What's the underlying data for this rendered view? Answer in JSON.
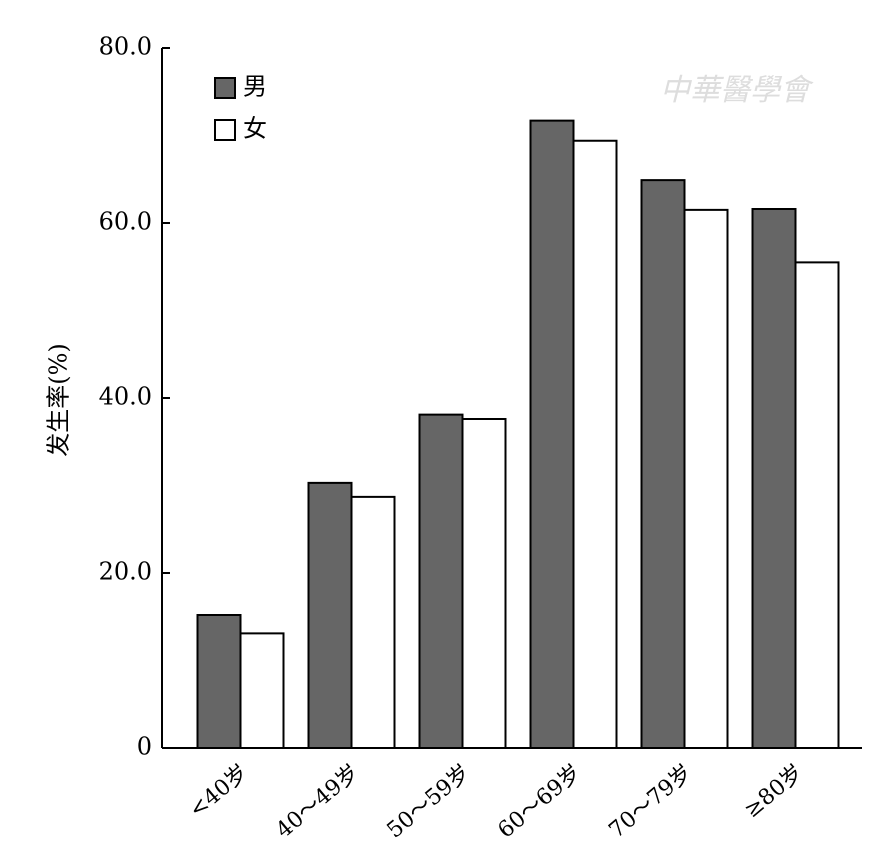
{
  "chart_data": {
    "type": "bar",
    "y_label": "发生率(%)",
    "watermark": "中華醫學會",
    "categories": [
      "<40岁",
      "40～49岁",
      "50～59岁",
      "60～69岁",
      "70～79岁",
      "≥80岁"
    ],
    "series": [
      {
        "name": "男",
        "color": "#666666",
        "values": [
          15.2,
          30.3,
          38.1,
          71.7,
          64.9,
          61.6
        ]
      },
      {
        "name": "女",
        "color": "#ffffff",
        "values": [
          13.1,
          28.7,
          37.6,
          69.4,
          61.5,
          55.5
        ]
      }
    ],
    "ylim": [
      0,
      80
    ],
    "yticks": [
      0,
      {
        "value": 20,
        "label": "20.0"
      },
      {
        "value": 40,
        "label": "40.0"
      },
      {
        "value": 60,
        "label": "60.0"
      },
      {
        "value": 80,
        "label": "80.0"
      }
    ],
    "legend": "upper-left"
  }
}
